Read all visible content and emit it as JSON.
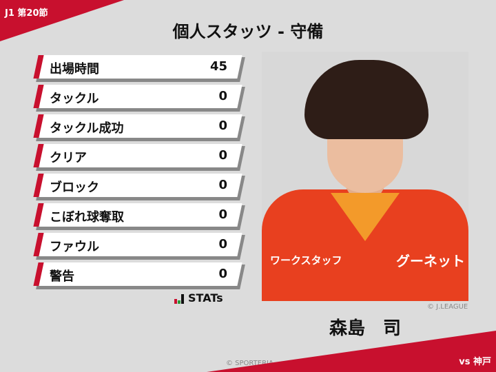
{
  "header": {
    "round": "J1 第20節",
    "title": "個人スタッツ - 守備",
    "opponent": "vs 神戸"
  },
  "stats": [
    {
      "label": "出場時間",
      "value": "45"
    },
    {
      "label": "タックル",
      "value": "0"
    },
    {
      "label": "タックル成功",
      "value": "0"
    },
    {
      "label": "クリア",
      "value": "0"
    },
    {
      "label": "ブロック",
      "value": "0"
    },
    {
      "label": "こぼれ球奪取",
      "value": "0"
    },
    {
      "label": "ファウル",
      "value": "0"
    },
    {
      "label": "警告",
      "value": "0"
    }
  ],
  "logo": {
    "text": "STATs"
  },
  "player": {
    "name": "森島　司",
    "photo_credit": "© J.LEAGUE",
    "jersey_text": "ワークスタッフ",
    "jersey_text2": "グーネット"
  },
  "footer": {
    "copyright": "© SPORTERIA"
  },
  "colors": {
    "accent": "#c8102e",
    "background": "#dcdcdc"
  }
}
